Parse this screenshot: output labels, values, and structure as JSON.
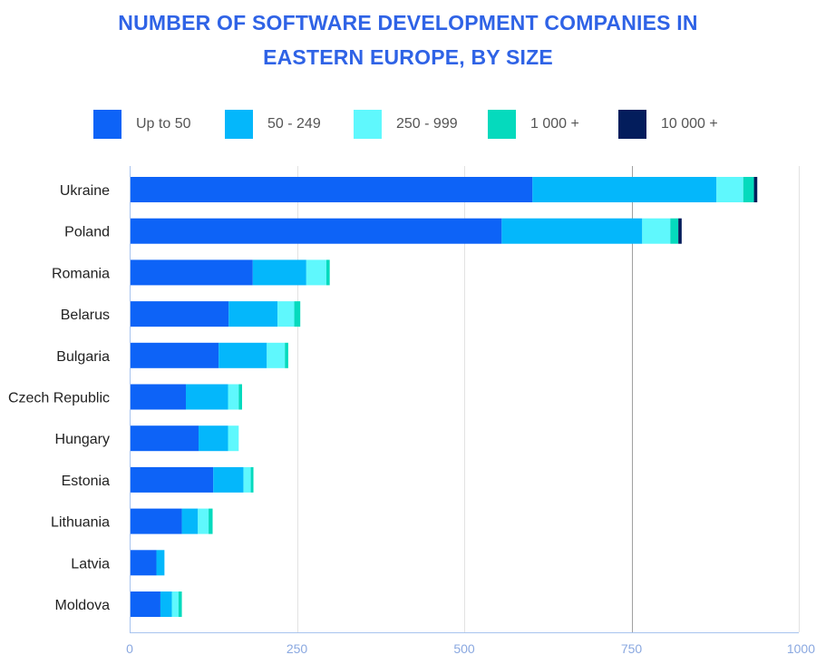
{
  "title": {
    "line1": "NUMBER OF SOFTWARE DEVELOPMENT COMPANIES IN",
    "line2": "EASTERN EUROPE, BY SIZE"
  },
  "colors": {
    "title": "#2f63e6",
    "series": [
      "#0d63f7",
      "#04b7fb",
      "#5ff8fd",
      "#05dabd",
      "#031d5c"
    ],
    "axis": "#a8c3ef",
    "tick_label": "#8aa8e0",
    "grid_major": "#a0a0a0",
    "grid_minor": "#e2e2e2"
  },
  "chart_data": {
    "type": "bar",
    "orientation": "horizontal",
    "stacked": true,
    "title": "NUMBER OF SOFTWARE DEVELOPMENT COMPANIES IN EASTERN EUROPE, BY SIZE",
    "xlabel": "",
    "ylabel": "",
    "xlim": [
      0,
      1000
    ],
    "xticks": [
      "0",
      "250",
      "500",
      "750",
      "1000"
    ],
    "legend_position": "top",
    "grid": true,
    "categories": [
      "Ukraine",
      "Poland",
      "Romania",
      "Belarus",
      "Bulgaria",
      "Czech Republic",
      "Hungary",
      "Estonia",
      "Lithuania",
      "Latvia",
      "Moldova"
    ],
    "series": [
      {
        "name": "Up to 50",
        "values": [
          602,
          556,
          184,
          148,
          133,
          84,
          103,
          125,
          78,
          40,
          46
        ]
      },
      {
        "name": "50 - 249",
        "values": [
          275,
          210,
          80,
          73,
          72,
          63,
          44,
          45,
          24,
          12,
          17
        ]
      },
      {
        "name": "250 - 999",
        "values": [
          40,
          42,
          30,
          25,
          27,
          16,
          16,
          11,
          16,
          0,
          10
        ]
      },
      {
        "name": "1 000 +",
        "values": [
          16,
          12,
          5,
          9,
          5,
          5,
          0,
          4,
          6,
          0,
          5
        ]
      },
      {
        "name": "10 000 +",
        "values": [
          5,
          5,
          0,
          0,
          0,
          0,
          0,
          0,
          0,
          0,
          0
        ]
      }
    ]
  }
}
